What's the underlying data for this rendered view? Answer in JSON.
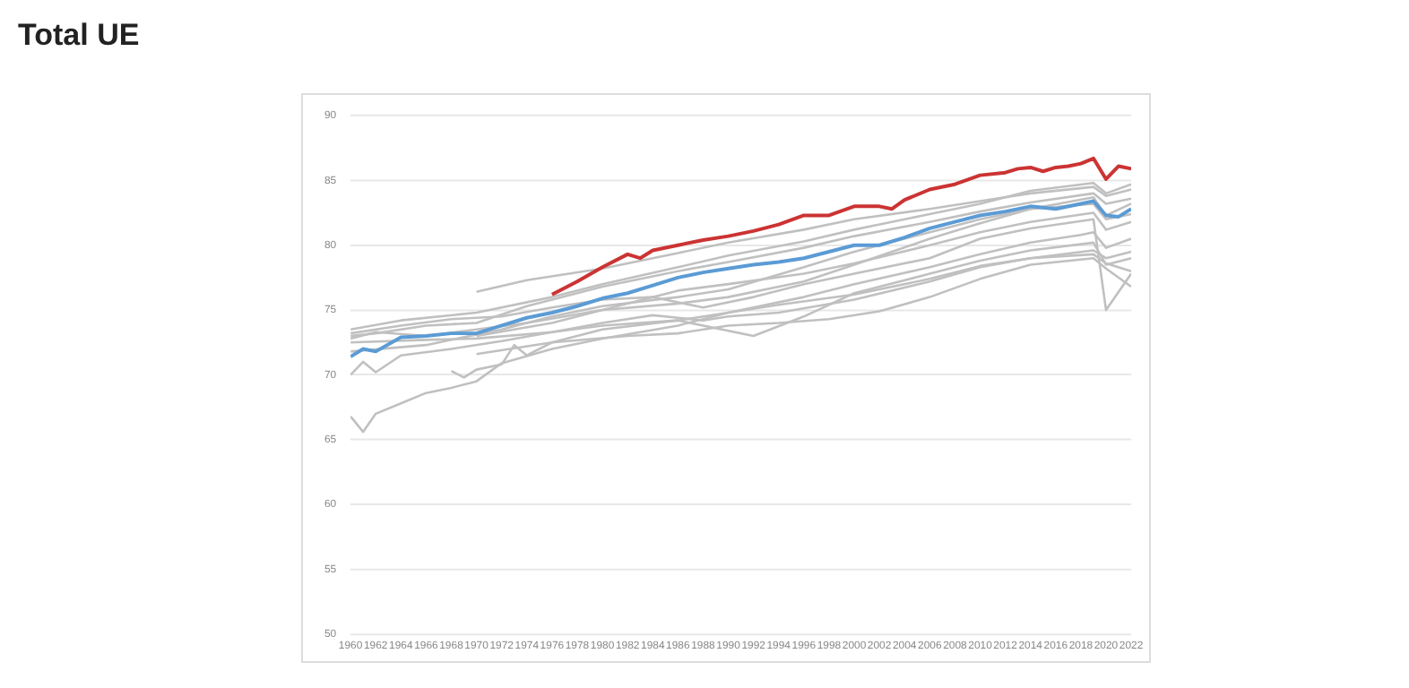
{
  "chart_data": {
    "type": "line",
    "title": "Total UE",
    "marker": "none",
    "line_style": "solid",
    "grid": "y",
    "xlim": [
      1960,
      2022
    ],
    "xticks": [
      1960,
      1962,
      1964,
      1966,
      1968,
      1970,
      1972,
      1974,
      1976,
      1978,
      1980,
      1982,
      1984,
      1986,
      1988,
      1990,
      1992,
      1994,
      1996,
      1998,
      2000,
      2002,
      2004,
      2006,
      2008,
      2010,
      2012,
      2014,
      2016,
      2018,
      2020,
      2022
    ],
    "ylim": [
      50,
      90
    ],
    "yticks": [
      50,
      55,
      60,
      65,
      70,
      75,
      80,
      85,
      90
    ],
    "series": [
      {
        "color": "#c0c0c0",
        "x": [
          1960,
          1961,
          1962,
          1964,
          1966,
          1968,
          1970,
          1972,
          1976,
          1980,
          1986,
          1990,
          1996,
          2000,
          2006,
          2010,
          2014,
          2018,
          2019,
          2020,
          2022
        ],
        "values": [
          66.8,
          65.6,
          67.0,
          67.8,
          68.6,
          69.0,
          69.5,
          70.9,
          72.0,
          72.8,
          73.8,
          74.8,
          76.0,
          77.0,
          78.3,
          79.3,
          80.2,
          80.8,
          81.0,
          79.8,
          80.5
        ]
      },
      {
        "color": "#c0c0c0",
        "x": [
          1968,
          1969,
          1970,
          1972,
          1973,
          1974,
          1976,
          1980,
          1986,
          1990,
          1994,
          2000,
          2006,
          2010,
          2014,
          2019,
          2020,
          2022
        ],
        "values": [
          70.3,
          69.8,
          70.4,
          70.8,
          72.3,
          71.5,
          72.5,
          73.5,
          74.2,
          74.8,
          75.4,
          76.2,
          77.4,
          78.4,
          79.0,
          79.3,
          78.6,
          78.0
        ]
      },
      {
        "color": "#c0c0c0",
        "x": [
          1970,
          1974,
          1980,
          1986,
          1990,
          1996,
          2000,
          2006,
          2010,
          2014,
          2019,
          2020,
          2022
        ],
        "values": [
          76.4,
          77.3,
          78.2,
          79.4,
          80.2,
          81.2,
          82.0,
          82.8,
          83.4,
          84.0,
          84.5,
          83.8,
          84.3
        ]
      },
      {
        "color": "#c0c0c0",
        "x": [
          1960,
          1962,
          1966,
          1970,
          1974,
          1980,
          1986,
          1990,
          1996,
          2000,
          2006,
          2010,
          2014,
          2019,
          2020,
          2022
        ],
        "values": [
          73.0,
          73.2,
          73.8,
          74.0,
          75.3,
          76.8,
          78.0,
          78.7,
          79.8,
          80.7,
          81.8,
          82.6,
          83.3,
          84.0,
          83.2,
          83.6
        ]
      },
      {
        "color": "#c0c0c0",
        "x": [
          1960,
          1962,
          1966,
          1970,
          1974,
          1980,
          1986,
          1990,
          1996,
          2000,
          2006,
          2010,
          2014,
          2019,
          2020,
          2022
        ],
        "values": [
          72.8,
          73.3,
          73.0,
          73.5,
          74.0,
          75.0,
          75.5,
          76.0,
          77.2,
          78.5,
          80.5,
          81.7,
          82.8,
          83.7,
          82.3,
          83.2
        ]
      },
      {
        "color": "#c0c0c0",
        "x": [
          1960,
          1961,
          1962,
          1964,
          1968,
          1972,
          1976,
          1980,
          1984,
          1988,
          1990,
          1994,
          2000,
          2006,
          2010,
          2014,
          2019,
          2020,
          2022
        ],
        "values": [
          70.0,
          71.0,
          70.2,
          71.5,
          72.0,
          72.6,
          73.3,
          74.0,
          74.6,
          74.2,
          74.5,
          74.8,
          75.8,
          77.2,
          78.3,
          79.0,
          79.6,
          79.0,
          79.5
        ]
      },
      {
        "color": "#c0c0c0",
        "x": [
          1960,
          1964,
          1968,
          1972,
          1976,
          1980,
          1984,
          1988,
          1992,
          1996,
          2000,
          2006,
          2010,
          2014,
          2019,
          2020,
          2022
        ],
        "values": [
          73.2,
          73.8,
          74.3,
          74.5,
          75.2,
          75.8,
          76.0,
          75.2,
          76.0,
          77.0,
          77.8,
          79.0,
          80.5,
          81.3,
          82.0,
          75.0,
          77.8
        ]
      },
      {
        "color": "#c0c0c0",
        "x": [
          1960,
          1966,
          1970,
          1976,
          1980,
          1986,
          1992,
          1996,
          2000,
          2006,
          2010,
          2014,
          2019,
          2020,
          2022
        ],
        "values": [
          72.5,
          72.7,
          72.8,
          73.3,
          73.8,
          74.2,
          73.0,
          74.5,
          76.3,
          77.8,
          78.8,
          79.6,
          80.2,
          78.5,
          79.0
        ]
      },
      {
        "color": "#c0c0c0",
        "x": [
          1970,
          1976,
          1982,
          1986,
          1990,
          1994,
          1998,
          2002,
          2006,
          2010,
          2014,
          2019,
          2020,
          2022
        ],
        "values": [
          71.6,
          72.5,
          73.0,
          73.2,
          73.8,
          74.0,
          74.3,
          74.9,
          76.0,
          77.4,
          78.5,
          79.0,
          78.2,
          76.8
        ]
      },
      {
        "color": "#c0c0c0",
        "x": [
          1960,
          1964,
          1970,
          1976,
          1980,
          1986,
          1990,
          1996,
          2000,
          2006,
          2010,
          2014,
          2019,
          2020,
          2022
        ],
        "values": [
          73.5,
          74.2,
          74.8,
          76.0,
          77.0,
          78.3,
          79.2,
          80.3,
          81.2,
          82.4,
          83.2,
          84.2,
          84.8,
          84.0,
          84.7
        ]
      },
      {
        "color": "#c0c0c0",
        "x": [
          1970,
          1976,
          1980,
          1986,
          1990,
          1996,
          2000,
          2006,
          2010,
          2014,
          2019,
          2020,
          2022
        ],
        "values": [
          73.0,
          74.0,
          75.0,
          76.5,
          77.0,
          77.8,
          78.6,
          80.0,
          81.0,
          81.8,
          82.5,
          81.2,
          81.8
        ]
      },
      {
        "color": "#c0c0c0",
        "x": [
          1960,
          1966,
          1972,
          1976,
          1980,
          1986,
          1990,
          1996,
          2000,
          2006,
          2010,
          2014,
          2019,
          2020,
          2022
        ],
        "values": [
          71.8,
          72.3,
          73.5,
          74.5,
          75.3,
          76.0,
          76.6,
          78.3,
          79.5,
          81.0,
          82.0,
          82.8,
          83.2,
          82.0,
          82.4
        ]
      },
      {
        "color": "#5b9bd5",
        "x": [
          1960,
          1961,
          1962,
          1964,
          1966,
          1968,
          1970,
          1972,
          1974,
          1976,
          1978,
          1980,
          1982,
          1984,
          1986,
          1988,
          1990,
          1992,
          1994,
          1996,
          1998,
          2000,
          2002,
          2004,
          2006,
          2008,
          2010,
          2012,
          2014,
          2016,
          2018,
          2019,
          2020,
          2021,
          2022
        ],
        "values": [
          71.4,
          72.0,
          71.8,
          72.9,
          73.0,
          73.2,
          73.2,
          73.8,
          74.4,
          74.8,
          75.3,
          75.9,
          76.3,
          76.9,
          77.5,
          77.9,
          78.2,
          78.5,
          78.7,
          79.0,
          79.5,
          80.0,
          80.0,
          80.6,
          81.3,
          81.8,
          82.3,
          82.6,
          83.0,
          82.8,
          83.2,
          83.4,
          82.3,
          82.2,
          82.8
        ]
      },
      {
        "color": "#cc3333",
        "x": [
          1976,
          1978,
          1980,
          1982,
          1983,
          1984,
          1986,
          1988,
          1990,
          1992,
          1994,
          1996,
          1998,
          2000,
          2002,
          2003,
          2004,
          2006,
          2008,
          2010,
          2012,
          2013,
          2014,
          2015,
          2016,
          2017,
          2018,
          2019,
          2020,
          2021,
          2022
        ],
        "values": [
          76.2,
          77.2,
          78.3,
          79.3,
          79.0,
          79.6,
          80.0,
          80.4,
          80.7,
          81.1,
          81.6,
          82.3,
          82.3,
          83.0,
          83.0,
          82.8,
          83.5,
          84.3,
          84.7,
          85.4,
          85.6,
          85.9,
          86.0,
          85.7,
          86.0,
          86.1,
          86.3,
          86.7,
          85.1,
          86.1,
          85.9
        ]
      }
    ]
  }
}
